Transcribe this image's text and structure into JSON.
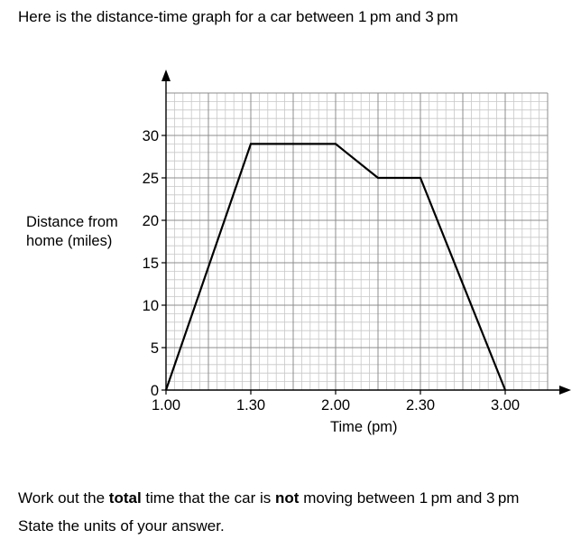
{
  "intro_text": "Here is the distance-time graph for a car between 1 pm and 3 pm",
  "question": {
    "line1_part1": "Work out the ",
    "line1_bold1": "total",
    "line1_part2": " time that the car is ",
    "line1_bold2": "not",
    "line1_part3": " moving between 1 pm and 3 pm",
    "line2": "State the units of your answer."
  },
  "chart_data": {
    "type": "line",
    "xlabel": "Time (pm)",
    "ylabel_lines": [
      "Distance from",
      "home (miles)"
    ],
    "x_tick_labels": [
      "1.00",
      "1.30",
      "2.00",
      "2.30",
      "3.00"
    ],
    "y_tick_labels": [
      "0",
      "5",
      "10",
      "15",
      "20",
      "25",
      "30"
    ],
    "xlim_minutes_after_1pm": [
      0,
      135
    ],
    "ylim": [
      0,
      35
    ],
    "x_tick_values_minutes_after_1pm": [
      0,
      30,
      60,
      90,
      120
    ],
    "y_tick_values": [
      0,
      5,
      10,
      15,
      20,
      25,
      30
    ],
    "series": [
      {
        "x_minutes_after_1pm": [
          0,
          30,
          60,
          75,
          90,
          120
        ],
        "y": [
          0,
          29,
          29,
          25,
          25,
          0
        ]
      }
    ],
    "grid": true,
    "grid_minor_x_per_major": 10,
    "grid_minor_y_per_major": 5,
    "colors": {
      "line": "#000000",
      "grid_major": "#8c8c8c",
      "grid_minor": "#c8c8c8"
    }
  }
}
